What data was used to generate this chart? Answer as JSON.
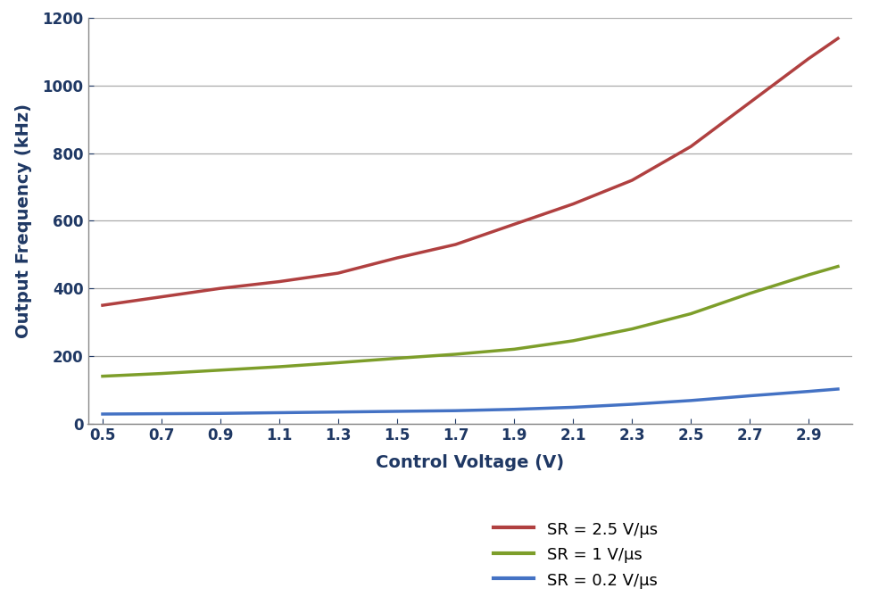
{
  "x_values": [
    0.5,
    0.7,
    0.9,
    1.1,
    1.3,
    1.5,
    1.7,
    1.9,
    2.1,
    2.3,
    2.5,
    2.7,
    2.9,
    3.0
  ],
  "series": [
    {
      "label": "SR = 2.5 V/μs",
      "color": "#B04040",
      "y_values": [
        350,
        375,
        400,
        420,
        445,
        490,
        530,
        590,
        650,
        720,
        820,
        950,
        1080,
        1140
      ]
    },
    {
      "label": "SR = 1 V/μs",
      "color": "#7D9E2A",
      "y_values": [
        140,
        148,
        158,
        168,
        180,
        193,
        205,
        220,
        245,
        280,
        325,
        385,
        440,
        465
      ]
    },
    {
      "label": "SR = 0.2 V/μs",
      "color": "#4472C4",
      "y_values": [
        28,
        29,
        30,
        32,
        34,
        36,
        38,
        42,
        48,
        57,
        68,
        82,
        95,
        102
      ]
    }
  ],
  "xlabel": "Control Voltage (V)",
  "ylabel": "Output Frequency (kHz)",
  "xlim": [
    0.45,
    3.05
  ],
  "ylim": [
    0,
    1200
  ],
  "xticks": [
    0.5,
    0.7,
    0.9,
    1.1,
    1.3,
    1.5,
    1.7,
    1.9,
    2.1,
    2.3,
    2.5,
    2.7,
    2.9
  ],
  "yticks": [
    0,
    200,
    400,
    600,
    800,
    1000,
    1200
  ],
  "background_color": "#FFFFFF",
  "plot_bg_color": "#FFFFFF",
  "grid_color": "#AAAAAA",
  "axis_label_fontsize": 14,
  "tick_fontsize": 12,
  "legend_fontsize": 13,
  "line_width": 2.5,
  "text_color": "#1F3864",
  "tick_color": "#1F3864"
}
